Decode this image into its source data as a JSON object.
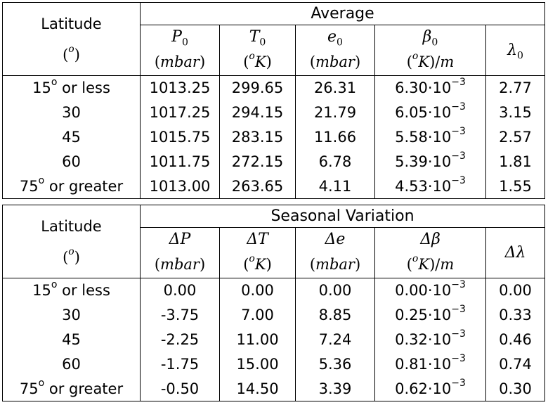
{
  "average": {
    "latitude_label": "Latitude",
    "latitude_unit_prefix": "(",
    "latitude_unit_sup": "o",
    "latitude_unit_suffix": ")",
    "group_title": "Average",
    "headers": [
      {
        "sym": "P",
        "sub": "0",
        "unit": "mbar"
      },
      {
        "sym": "T",
        "sub": "0",
        "unit": "oK"
      },
      {
        "sym": "e",
        "sub": "0",
        "unit": "mbar"
      },
      {
        "sym": "β",
        "sub": "0",
        "unit": "oK/m"
      },
      {
        "sym": "λ",
        "sub": "0",
        "unit": ""
      }
    ],
    "rows": [
      {
        "lat_num": "15",
        "lat_sup": "o",
        "lat_text": " or less",
        "P": "1013.25",
        "T": "299.65",
        "e": "26.31",
        "b_mant": "6.30·10",
        "b_exp": "−3",
        "l": "2.77"
      },
      {
        "lat_num": "30",
        "lat_sup": "",
        "lat_text": "",
        "P": "1017.25",
        "T": "294.15",
        "e": "21.79",
        "b_mant": "6.05·10",
        "b_exp": "−3",
        "l": "3.15"
      },
      {
        "lat_num": "45",
        "lat_sup": "",
        "lat_text": "",
        "P": "1015.75",
        "T": "283.15",
        "e": "11.66",
        "b_mant": "5.58·10",
        "b_exp": "−3",
        "l": "2.57"
      },
      {
        "lat_num": "60",
        "lat_sup": "",
        "lat_text": "",
        "P": "1011.75",
        "T": "272.15",
        "e": "6.78",
        "b_mant": "5.39·10",
        "b_exp": "−3",
        "l": "1.81"
      },
      {
        "lat_num": "75",
        "lat_sup": "o",
        "lat_text": " or greater",
        "P": "1013.00",
        "T": "263.65",
        "e": "4.11",
        "b_mant": "4.53·10",
        "b_exp": "−3",
        "l": "1.55"
      }
    ]
  },
  "seasonal": {
    "latitude_label": "Latitude",
    "latitude_unit_prefix": "(",
    "latitude_unit_sup": "o",
    "latitude_unit_suffix": ")",
    "group_title": "Seasonal Variation",
    "headers": [
      {
        "sym": "ΔP",
        "unit": "mbar"
      },
      {
        "sym": "ΔT",
        "unit": "oK"
      },
      {
        "sym": "Δe",
        "unit": "mbar"
      },
      {
        "sym": "Δβ",
        "unit": "oK/m"
      },
      {
        "sym": "Δλ",
        "unit": ""
      }
    ],
    "rows": [
      {
        "lat_num": "15",
        "lat_sup": "o",
        "lat_text": " or less",
        "P": "0.00",
        "T": "0.00",
        "e": "0.00",
        "b_mant": "0.00·10",
        "b_exp": "−3",
        "l": "0.00"
      },
      {
        "lat_num": "30",
        "lat_sup": "",
        "lat_text": "",
        "P": "-3.75",
        "T": "7.00",
        "e": "8.85",
        "b_mant": "0.25·10",
        "b_exp": "−3",
        "l": "0.33"
      },
      {
        "lat_num": "45",
        "lat_sup": "",
        "lat_text": "",
        "P": "-2.25",
        "T": "11.00",
        "e": "7.24",
        "b_mant": "0.32·10",
        "b_exp": "−3",
        "l": "0.46"
      },
      {
        "lat_num": "60",
        "lat_sup": "",
        "lat_text": "",
        "P": "-1.75",
        "T": "15.00",
        "e": "5.36",
        "b_mant": "0.81·10",
        "b_exp": "−3",
        "l": "0.74"
      },
      {
        "lat_num": "75",
        "lat_sup": "o",
        "lat_text": " or greater",
        "P": "-0.50",
        "T": "14.50",
        "e": "3.39",
        "b_mant": "0.62·10",
        "b_exp": "−3",
        "l": "0.30"
      }
    ]
  }
}
